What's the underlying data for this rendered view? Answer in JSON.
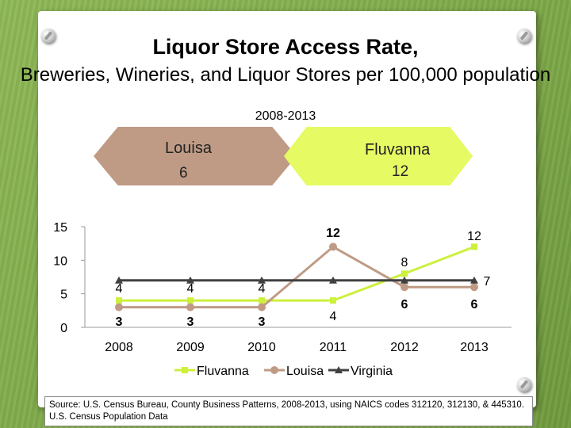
{
  "slide": {
    "title_line1": "Liquor Store Access Rate,",
    "title_line2": "Breweries, Wineries, and Liquor Stores per 100,000 population",
    "date_range": "2008-2013",
    "source": "Source: U.S. Census Bureau, County Business Patterns, 2008-2013, using NAICS codes 312120, 312130, & 445310. U.S. Census Population Data"
  },
  "callouts": [
    {
      "name": "Louisa",
      "value": "6",
      "color": "#bf9b85"
    },
    {
      "name": "Fluvanna",
      "value": "12",
      "color": "#e6fa63"
    }
  ],
  "chart_data": {
    "type": "line",
    "categories": [
      "2008",
      "2009",
      "2010",
      "2011",
      "2012",
      "2013"
    ],
    "ylim": [
      0,
      15
    ],
    "yticks": [
      0,
      5,
      10,
      15
    ],
    "grid": false,
    "legend_position": "bottom",
    "series": [
      {
        "name": "Fluvanna",
        "color": "#ccf03c",
        "marker": "square",
        "values": [
          4,
          4,
          4,
          4,
          8,
          12
        ],
        "labels": [
          "4",
          "4",
          "4",
          "4",
          "8",
          "12"
        ]
      },
      {
        "name": "Louisa",
        "color": "#bf9b85",
        "marker": "circle",
        "values": [
          3,
          3,
          3,
          12,
          6,
          6
        ],
        "labels": [
          "3",
          "3",
          "3",
          "12",
          "6",
          "6"
        ]
      },
      {
        "name": "Virginia",
        "color": "#404040",
        "marker": "triangle",
        "values": [
          7,
          7,
          7,
          7,
          7,
          7
        ],
        "labels": [
          "",
          "",
          "",
          "",
          "",
          "7"
        ]
      }
    ]
  }
}
